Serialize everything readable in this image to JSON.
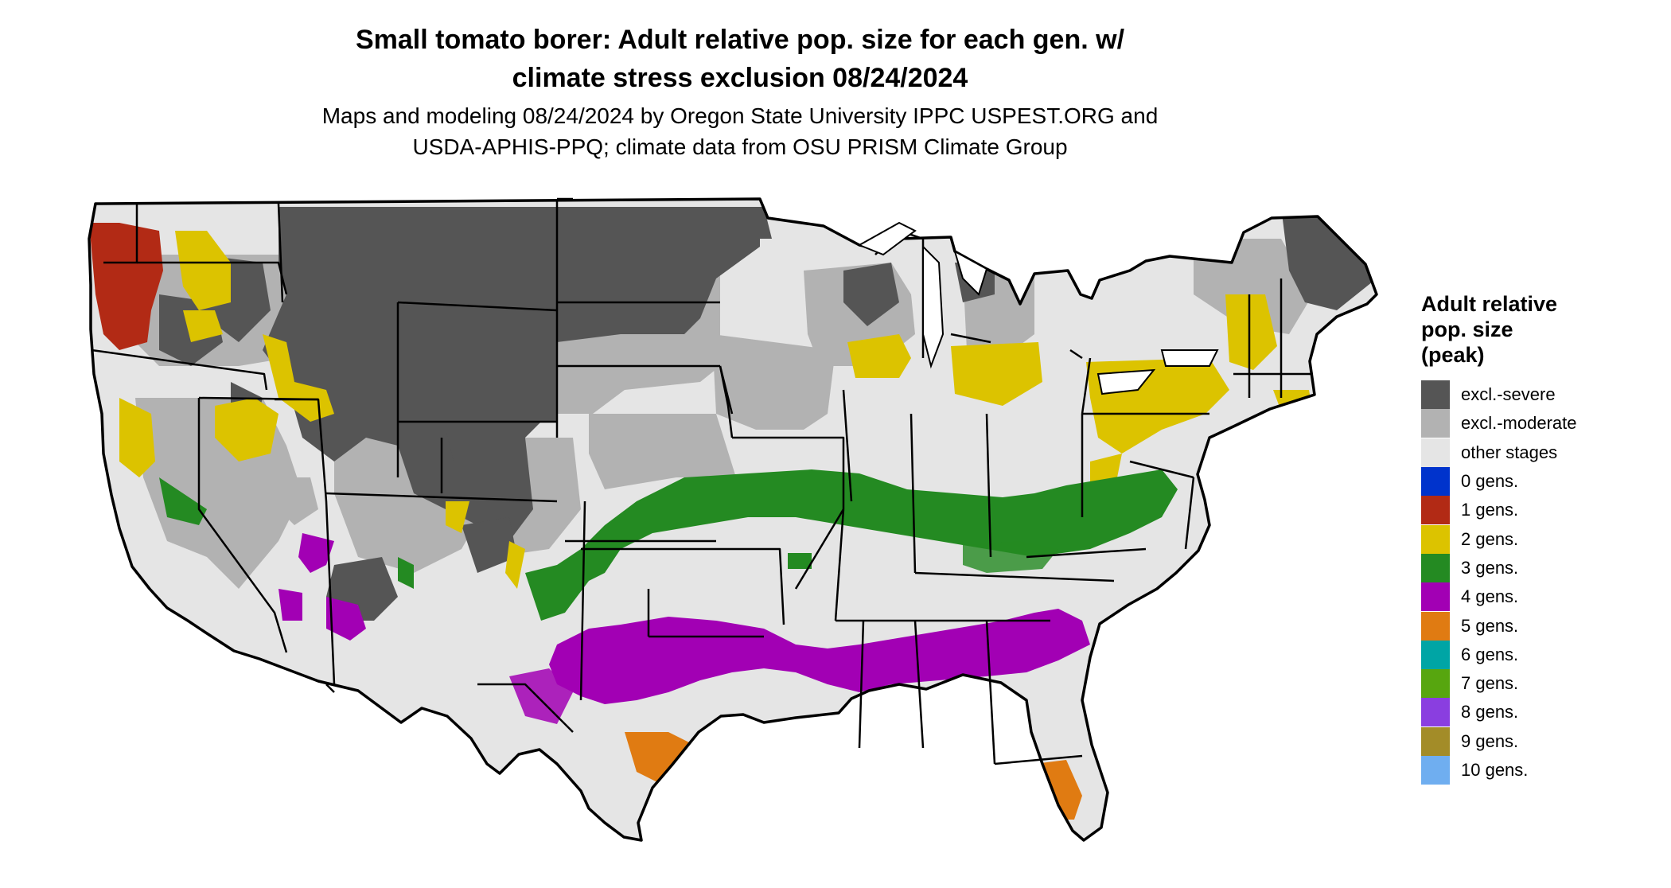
{
  "map": {
    "title_line1": "Small tomato borer: Adult relative pop. size for each gen. w/",
    "title_line2": "climate stress exclusion 08/24/2024",
    "subtitle_line1": "Maps and modeling 08/24/2024 by Oregon State University IPPC USPEST.ORG and",
    "subtitle_line2": "USDA-APHIS-PPQ; climate data from OSU PRISM Climate Group"
  },
  "legend": {
    "title_lines": [
      "Adult relative",
      "pop. size",
      "(peak)"
    ],
    "items": [
      {
        "label": "excl.-severe",
        "color": "#555555"
      },
      {
        "label": "excl.-moderate",
        "color": "#b2b2b2"
      },
      {
        "label": "other stages",
        "color": "#e5e5e5"
      },
      {
        "label": "0 gens.",
        "color": "#0033cc"
      },
      {
        "label": "1 gens.",
        "color": "#b22a15"
      },
      {
        "label": "2 gens.",
        "color": "#dcc300"
      },
      {
        "label": "3 gens.",
        "color": "#248a22"
      },
      {
        "label": "4 gens.",
        "color": "#a200b4"
      },
      {
        "label": "5 gens.",
        "color": "#e07b12"
      },
      {
        "label": "6 gens.",
        "color": "#00a5a5"
      },
      {
        "label": "7 gens.",
        "color": "#57a60f"
      },
      {
        "label": "8 gens.",
        "color": "#8a3ee0"
      },
      {
        "label": "9 gens.",
        "color": "#a38c28"
      },
      {
        "label": "10 gens.",
        "color": "#6faef0"
      }
    ]
  }
}
